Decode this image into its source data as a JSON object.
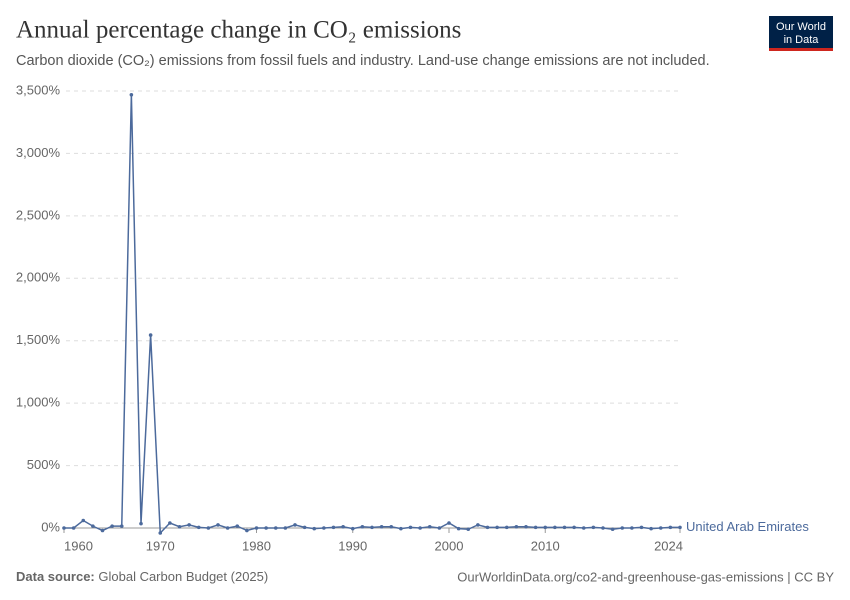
{
  "chart_data": {
    "type": "line",
    "title": "Annual percentage change in CO₂ emissions",
    "subtitle": "Carbon dioxide (CO₂) emissions from fossil fuels and industry. Land-use change emissions are not included.",
    "logo": [
      "Our World",
      "in Data"
    ],
    "source_label": "Data source:",
    "source": "Global Carbon Budget (2025)",
    "url": "OurWorldinData.org/co2-and-greenhouse-gas-emissions | CC BY",
    "x": [
      1960,
      1961,
      1962,
      1963,
      1964,
      1965,
      1966,
      1967,
      1968,
      1969,
      1970,
      1971,
      1972,
      1973,
      1974,
      1975,
      1976,
      1977,
      1978,
      1979,
      1980,
      1981,
      1982,
      1983,
      1984,
      1985,
      1986,
      1987,
      1988,
      1989,
      1990,
      1991,
      1992,
      1993,
      1994,
      1995,
      1996,
      1997,
      1998,
      1999,
      2000,
      2001,
      2002,
      2003,
      2004,
      2005,
      2006,
      2007,
      2008,
      2009,
      2010,
      2011,
      2012,
      2013,
      2014,
      2015,
      2016,
      2017,
      2018,
      2019,
      2020,
      2021,
      2022,
      2023,
      2024
    ],
    "series": [
      {
        "name": "United Arab Emirates",
        "color": "#4c6a9c",
        "values": [
          0,
          0,
          60,
          15,
          -20,
          15,
          15,
          3470,
          35,
          1545,
          -40,
          40,
          10,
          25,
          5,
          0,
          25,
          0,
          15,
          -20,
          0,
          0,
          0,
          0,
          25,
          5,
          -5,
          0,
          5,
          10,
          -5,
          10,
          5,
          10,
          10,
          -5,
          5,
          0,
          10,
          0,
          40,
          -5,
          -10,
          25,
          5,
          5,
          5,
          10,
          10,
          5,
          5,
          5,
          5,
          5,
          0,
          5,
          0,
          -10,
          0,
          0,
          5,
          -5,
          0,
          5,
          5
        ]
      }
    ],
    "xlim": [
      1960,
      2024
    ],
    "xticks": [
      1960,
      1970,
      1980,
      1990,
      2000,
      2010,
      2024
    ],
    "ylim": [
      0,
      3500
    ],
    "yticks": [
      {
        "value": 0,
        "label": "0%"
      },
      {
        "value": 500,
        "label": "500%"
      },
      {
        "value": 1000,
        "label": "1,000%"
      },
      {
        "value": 1500,
        "label": "1,500%"
      },
      {
        "value": 2000,
        "label": "2,000%"
      },
      {
        "value": 2500,
        "label": "2,500%"
      },
      {
        "value": 3000,
        "label": "3,000%"
      },
      {
        "value": 3500,
        "label": "3,500%"
      }
    ],
    "grid": true
  }
}
